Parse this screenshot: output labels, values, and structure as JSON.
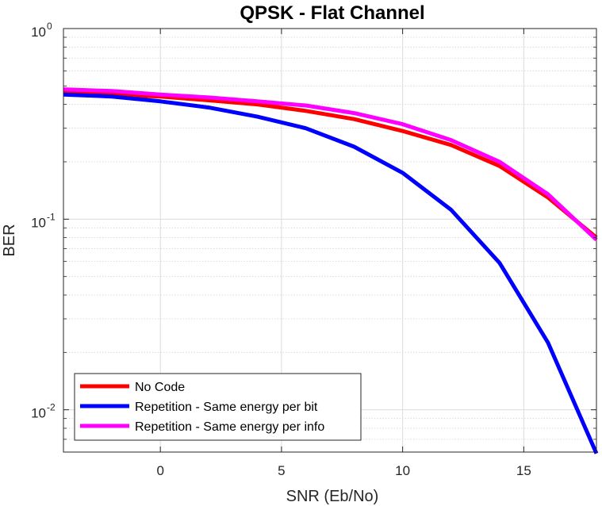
{
  "chart_data": {
    "type": "line",
    "title": "QPSK - Flat Channel",
    "xlabel": "SNR (Eb/No)",
    "ylabel": "BER",
    "yscale": "log",
    "xlim": [
      -4,
      18
    ],
    "ylim": [
      0.006,
      1
    ],
    "xticks": [
      0,
      5,
      10,
      15
    ],
    "yticks": [
      {
        "value": 0.01,
        "base": "10",
        "exp": "-2"
      },
      {
        "value": 0.1,
        "base": "10",
        "exp": "-1"
      },
      {
        "value": 1,
        "base": "10",
        "exp": "0"
      }
    ],
    "grid": true,
    "legend_position": "bottom-left",
    "x": [
      -4,
      -2,
      0,
      2,
      4,
      6,
      8,
      10,
      12,
      14,
      16,
      18
    ],
    "series": [
      {
        "name": "No Code",
        "color": "#ff0000",
        "values": [
          0.46,
          0.45,
          0.44,
          0.42,
          0.4,
          0.37,
          0.335,
          0.29,
          0.245,
          0.19,
          0.13,
          0.08
        ]
      },
      {
        "name": "Repetition - Same energy per bit",
        "color": "#0000ff",
        "values": [
          0.45,
          0.44,
          0.415,
          0.385,
          0.345,
          0.3,
          0.24,
          0.175,
          0.112,
          0.059,
          0.0225,
          0.0059
        ]
      },
      {
        "name": "Repetition - Same energy per info",
        "color": "#ff00ff",
        "values": [
          0.48,
          0.47,
          0.45,
          0.435,
          0.415,
          0.395,
          0.36,
          0.315,
          0.26,
          0.2,
          0.135,
          0.078
        ]
      }
    ]
  }
}
